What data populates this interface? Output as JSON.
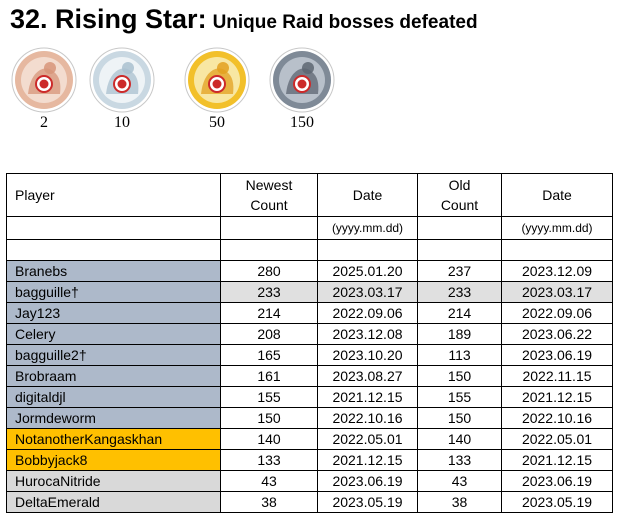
{
  "title": {
    "main": "32. Rising Star:",
    "sub": "Unique Raid bosses defeated"
  },
  "tiers": [
    {
      "label": "2",
      "tier": "bronze",
      "colors": {
        "ring": "#e6b8a0",
        "inner": "#f3dccf",
        "art": "#d7957a"
      }
    },
    {
      "label": "10",
      "tier": "silver",
      "colors": {
        "ring": "#c9d8e2",
        "inner": "#eef3f6",
        "art": "#a9c0cf"
      }
    },
    {
      "label": "50",
      "tier": "gold",
      "colors": {
        "ring": "#f2c02a",
        "inner": "#f8e7a3",
        "art": "#e3a020"
      }
    },
    {
      "label": "150",
      "tier": "platinum",
      "colors": {
        "ring": "#7f8a97",
        "inner": "#b8c0ca",
        "art": "#5d6672"
      }
    }
  ],
  "table": {
    "headers": {
      "player": "Player",
      "newest_count": [
        "Newest",
        "Count"
      ],
      "date": "Date",
      "old_count": [
        "Old",
        "Count"
      ],
      "date2": "Date"
    },
    "date_format": "(yyyy.mm.dd)",
    "colors": {
      "blue": "#adb9ca",
      "orange": "#ffc000",
      "gray": "#d9d9d9",
      "row_shade": "#e0e0e0"
    },
    "rows": [
      {
        "player": "Branebs",
        "newest": "280",
        "date": "2025.01.20",
        "old": "237",
        "old_date": "2023.12.09",
        "highlight": "blue",
        "shaded": false
      },
      {
        "player": "bagguille†",
        "newest": "233",
        "date": "2023.03.17",
        "old": "233",
        "old_date": "2023.03.17",
        "highlight": "blue",
        "shaded": true
      },
      {
        "player": "Jay123",
        "newest": "214",
        "date": "2022.09.06",
        "old": "214",
        "old_date": "2022.09.06",
        "highlight": "blue",
        "shaded": false
      },
      {
        "player": "Celery",
        "newest": "208",
        "date": "2023.12.08",
        "old": "189",
        "old_date": "2023.06.22",
        "highlight": "blue",
        "shaded": false
      },
      {
        "player": "bagguille2†",
        "newest": "165",
        "date": "2023.10.20",
        "old": "113",
        "old_date": "2023.06.19",
        "highlight": "blue",
        "shaded": false
      },
      {
        "player": "Brobraam",
        "newest": "161",
        "date": "2023.08.27",
        "old": "150",
        "old_date": "2022.11.15",
        "highlight": "blue",
        "shaded": false
      },
      {
        "player": "digitaldjl",
        "newest": "155",
        "date": "2021.12.15",
        "old": "155",
        "old_date": "2021.12.15",
        "highlight": "blue",
        "shaded": false
      },
      {
        "player": "Jormdeworm",
        "newest": "150",
        "date": "2022.10.16",
        "old": "150",
        "old_date": "2022.10.16",
        "highlight": "blue",
        "shaded": false
      },
      {
        "player": "NotanotherKangaskhan",
        "newest": "140",
        "date": "2022.05.01",
        "old": "140",
        "old_date": "2022.05.01",
        "highlight": "orange",
        "shaded": false
      },
      {
        "player": "Bobbyjack8",
        "newest": "133",
        "date": "2021.12.15",
        "old": "133",
        "old_date": "2021.12.15",
        "highlight": "orange",
        "shaded": false
      },
      {
        "player": "HurocaNitride",
        "newest": "43",
        "date": "2023.06.19",
        "old": "43",
        "old_date": "2023.06.19",
        "highlight": "gray",
        "shaded": false
      },
      {
        "player": "DeltaEmerald",
        "newest": "38",
        "date": "2023.05.19",
        "old": "38",
        "old_date": "2023.05.19",
        "highlight": "gray",
        "shaded": false
      }
    ]
  }
}
